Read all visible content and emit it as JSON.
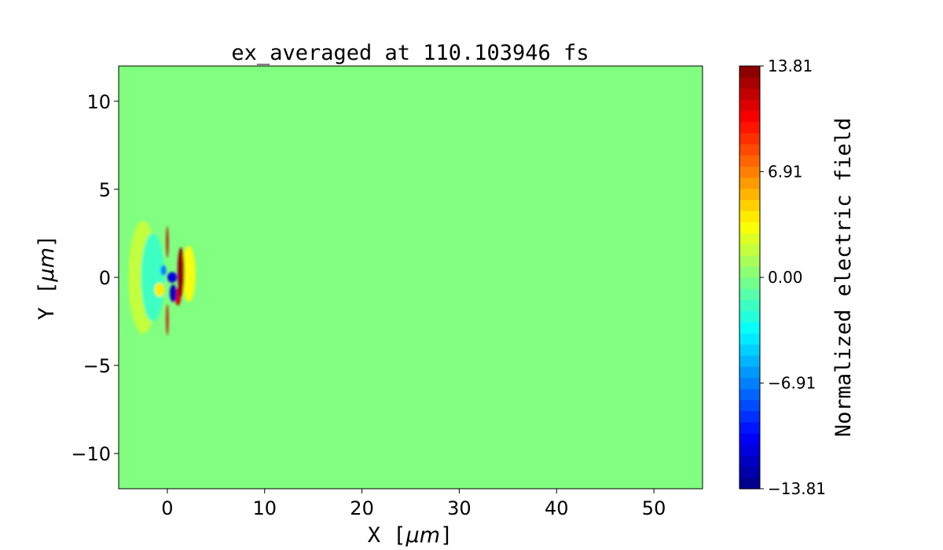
{
  "chart_data": {
    "type": "heatmap",
    "title": "ex_averaged at 110.103946 fs",
    "xlabel": "X [",
    "xlabel_unit": "μm",
    "xlabel_close": "]",
    "ylabel": "Y [",
    "ylabel_unit": "μm",
    "ylabel_close": "]",
    "xlim": [
      -5,
      55
    ],
    "ylim": [
      -12,
      12
    ],
    "xticks": [
      0,
      10,
      20,
      30,
      40,
      50
    ],
    "xtick_labels": [
      "0",
      "10",
      "20",
      "30",
      "40",
      "50"
    ],
    "yticks": [
      -10,
      -5,
      0,
      5,
      10
    ],
    "ytick_labels": [
      "−10",
      "−5",
      "0",
      "5",
      "10"
    ],
    "colormap": "jet",
    "colorbar": {
      "label": "Normalized electric field",
      "range": [
        -13.81,
        13.81
      ],
      "levels": 38,
      "ticks": [
        -13.81,
        -6.91,
        0.0,
        6.91,
        13.81
      ],
      "tick_labels": [
        "−13.81",
        "−6.91",
        "0.00",
        "6.91",
        "13.81"
      ]
    },
    "background_value": 0.0,
    "features": [
      {
        "x": 1.4,
        "y": 0.3,
        "rx": 0.35,
        "ry": 1.4,
        "value": 13.5
      },
      {
        "x": 1.1,
        "y": -1.1,
        "rx": 0.3,
        "ry": 0.5,
        "value": 11
      },
      {
        "x": 0.0,
        "y": 2.0,
        "rx": 0.12,
        "ry": 0.9,
        "value": 12
      },
      {
        "x": 0.0,
        "y": -2.4,
        "rx": 0.12,
        "ry": 0.9,
        "value": 11
      },
      {
        "x": 0.5,
        "y": 0.0,
        "rx": 0.5,
        "ry": 0.3,
        "value": -11
      },
      {
        "x": 0.6,
        "y": -0.9,
        "rx": 0.35,
        "ry": 0.5,
        "value": -12
      },
      {
        "x": -0.4,
        "y": 0.4,
        "rx": 0.3,
        "ry": 0.3,
        "value": -7
      },
      {
        "x": -0.8,
        "y": -0.7,
        "rx": 0.5,
        "ry": 0.4,
        "value": 4
      },
      {
        "x": 2.2,
        "y": 0.2,
        "rx": 0.7,
        "ry": 1.6,
        "value": 3
      },
      {
        "x": -1.5,
        "y": 0.0,
        "rx": 1.2,
        "ry": 2.5,
        "value": -2
      },
      {
        "x": -2.5,
        "y": 0.0,
        "rx": 1.5,
        "ry": 3.2,
        "value": 1.5
      }
    ]
  }
}
